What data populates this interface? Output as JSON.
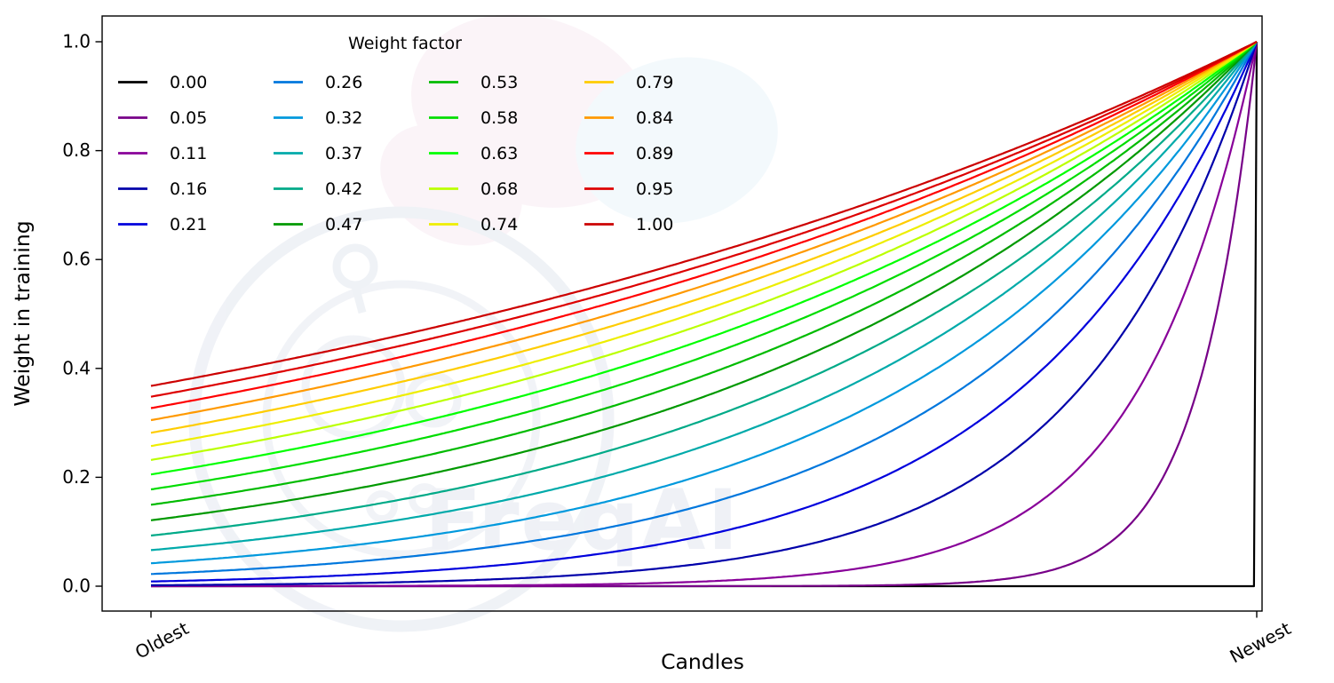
{
  "figure": {
    "background": "#ffffff",
    "watermark_text": "FreqAI"
  },
  "chart_data": {
    "type": "line",
    "title": "",
    "xlabel": "Candles",
    "ylabel": "Weight in training",
    "x_axis": {
      "tick_labels": [
        "Oldest",
        "Newest"
      ],
      "description": "candle age from oldest (left) to newest (right)"
    },
    "y_ticks": [
      0.0,
      0.2,
      0.4,
      0.6,
      0.8,
      1.0
    ],
    "y_tick_labels": [
      "0.0",
      "0.2",
      "0.4",
      "0.6",
      "0.8",
      "1.0"
    ],
    "ylim": [
      0.0,
      1.0
    ],
    "grid": false,
    "legend": {
      "title": "Weight factor",
      "position": "upper left",
      "ncols": 4,
      "rows_per_col": 5,
      "frame": false
    },
    "formula": "weight(x) = exp(-(1 - x) / weight_factor) for x in [0,1]; weight_factor = 0 gives weight 0 everywhere except weight 1 at the newest candle",
    "series": [
      {
        "label": "0.00",
        "weight_factor": 0.0,
        "color": "#000000",
        "y_oldest": 0.0,
        "y_newest": 1.0
      },
      {
        "label": "0.05",
        "weight_factor": 0.052632,
        "color": "#770088",
        "y_oldest": 0.0,
        "y_newest": 1.0
      },
      {
        "label": "0.11",
        "weight_factor": 0.105263,
        "color": "#880099",
        "y_oldest": 0.0001,
        "y_newest": 1.0
      },
      {
        "label": "0.16",
        "weight_factor": 0.157895,
        "color": "#0000aa",
        "y_oldest": 0.0018,
        "y_newest": 1.0
      },
      {
        "label": "0.21",
        "weight_factor": 0.210526,
        "color": "#0000dd",
        "y_oldest": 0.0087,
        "y_newest": 1.0
      },
      {
        "label": "0.26",
        "weight_factor": 0.263158,
        "color": "#0077dd",
        "y_oldest": 0.0224,
        "y_newest": 1.0
      },
      {
        "label": "0.32",
        "weight_factor": 0.315789,
        "color": "#0099dd",
        "y_oldest": 0.0421,
        "y_newest": 1.0
      },
      {
        "label": "0.37",
        "weight_factor": 0.368421,
        "color": "#00aaaa",
        "y_oldest": 0.0662,
        "y_newest": 1.0
      },
      {
        "label": "0.42",
        "weight_factor": 0.421053,
        "color": "#00aa88",
        "y_oldest": 0.093,
        "y_newest": 1.0
      },
      {
        "label": "0.47",
        "weight_factor": 0.473684,
        "color": "#009900",
        "y_oldest": 0.1211,
        "y_newest": 1.0
      },
      {
        "label": "0.53",
        "weight_factor": 0.526316,
        "color": "#00bb00",
        "y_oldest": 0.1496,
        "y_newest": 1.0
      },
      {
        "label": "0.58",
        "weight_factor": 0.578947,
        "color": "#00dd00",
        "y_oldest": 0.1778,
        "y_newest": 1.0
      },
      {
        "label": "0.63",
        "weight_factor": 0.631579,
        "color": "#00ff00",
        "y_oldest": 0.2053,
        "y_newest": 1.0
      },
      {
        "label": "0.68",
        "weight_factor": 0.684211,
        "color": "#bbff00",
        "y_oldest": 0.2319,
        "y_newest": 1.0
      },
      {
        "label": "0.74",
        "weight_factor": 0.736842,
        "color": "#eeee00",
        "y_oldest": 0.2574,
        "y_newest": 1.0
      },
      {
        "label": "0.79",
        "weight_factor": 0.789474,
        "color": "#ffcc00",
        "y_oldest": 0.2817,
        "y_newest": 1.0
      },
      {
        "label": "0.84",
        "weight_factor": 0.842105,
        "color": "#ff9900",
        "y_oldest": 0.305,
        "y_newest": 1.0
      },
      {
        "label": "0.89",
        "weight_factor": 0.894737,
        "color": "#ff0000",
        "y_oldest": 0.327,
        "y_newest": 1.0
      },
      {
        "label": "0.95",
        "weight_factor": 0.947368,
        "color": "#dd0000",
        "y_oldest": 0.348,
        "y_newest": 1.0
      },
      {
        "label": "1.00",
        "weight_factor": 1.0,
        "color": "#cc0000",
        "y_oldest": 0.3679,
        "y_newest": 1.0
      }
    ]
  }
}
